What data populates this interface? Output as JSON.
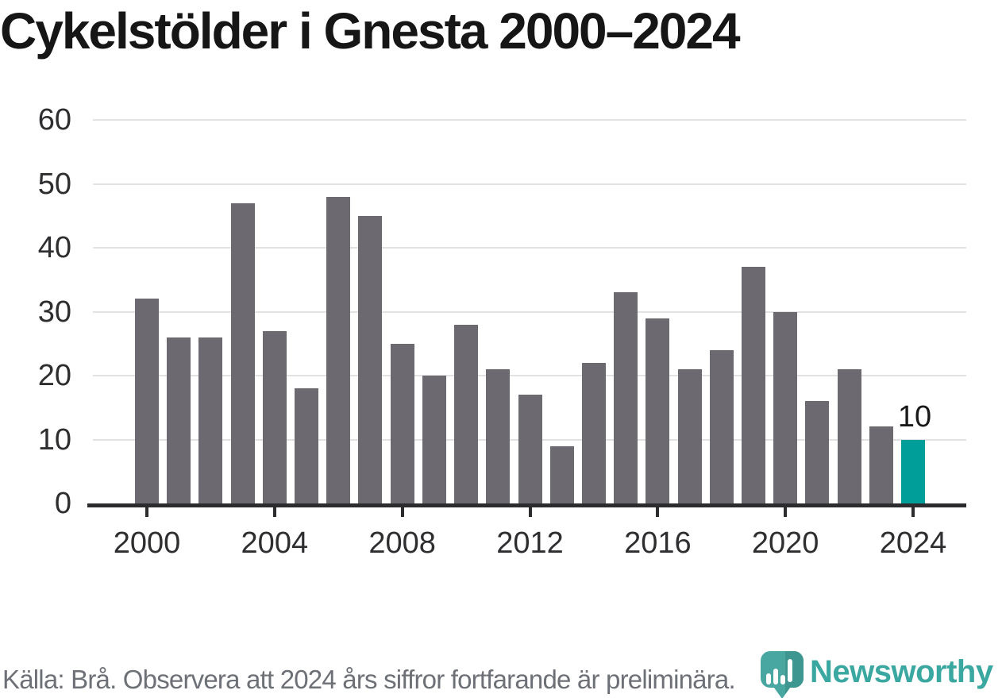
{
  "title": "Cykelstölder i Gnesta 2000–2024",
  "chart_data": {
    "type": "bar",
    "x": [
      2000,
      2001,
      2002,
      2003,
      2004,
      2005,
      2006,
      2007,
      2008,
      2009,
      2010,
      2011,
      2012,
      2013,
      2014,
      2015,
      2016,
      2017,
      2018,
      2019,
      2020,
      2021,
      2022,
      2023,
      2024
    ],
    "values": [
      32,
      26,
      26,
      47,
      27,
      18,
      48,
      45,
      25,
      20,
      28,
      21,
      17,
      9,
      22,
      33,
      29,
      21,
      24,
      37,
      30,
      16,
      21,
      12,
      10
    ],
    "title": "Cykelstölder i Gnesta 2000–2024",
    "xlabel": "",
    "ylabel": "",
    "ylim": [
      0,
      60
    ],
    "yticks": [
      0,
      10,
      20,
      30,
      40,
      50,
      60
    ],
    "xticks": [
      2000,
      2004,
      2008,
      2012,
      2016,
      2020,
      2024
    ],
    "grid": true,
    "legend": false,
    "bar_color": "#6c6a70",
    "highlight": {
      "year": 2024,
      "value": 10,
      "label": "10",
      "color": "#009e98"
    }
  },
  "footer": {
    "source_note": "Källa: Brå. Observera att 2024 års siffror fortfarande är preliminära."
  },
  "logo": {
    "text": "Newsworthy",
    "icon": "newsworthy-speech-bubble-barchart-icon",
    "text_color": "#3aa7a0",
    "icon_color": "#48a8a1"
  }
}
